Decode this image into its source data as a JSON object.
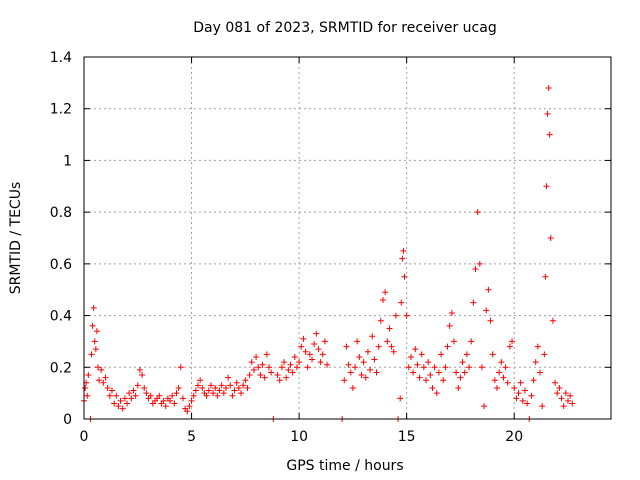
{
  "chart_data": {
    "type": "scatter",
    "title": "Day 081 of 2023, SRMTID for receiver ucag",
    "xlabel": "GPS time / hours",
    "ylabel": "SRMTID / TECUs",
    "xlim": [
      0,
      24.5
    ],
    "ylim": [
      0,
      1.4
    ],
    "grid": true,
    "marker": "+",
    "color": "#ff0000",
    "x_ticks": [
      0,
      5,
      10,
      15,
      20
    ],
    "x_tick_labels": [
      "0",
      "5",
      "10",
      "15",
      "20"
    ],
    "y_ticks": [
      0,
      0.2,
      0.4,
      0.6,
      0.8,
      1.0,
      1.2,
      1.4
    ],
    "y_tick_labels": [
      "0",
      "0.2",
      "0.4",
      "0.6",
      "0.8",
      "1",
      "1.2",
      "1.4"
    ],
    "series": [
      {
        "name": "SRMTID",
        "points": [
          [
            0.0,
            0.07
          ],
          [
            0.05,
            0.12
          ],
          [
            0.1,
            0.14
          ],
          [
            0.15,
            0.09
          ],
          [
            0.2,
            0.17
          ],
          [
            0.3,
            0.0
          ],
          [
            0.35,
            0.25
          ],
          [
            0.4,
            0.36
          ],
          [
            0.45,
            0.43
          ],
          [
            0.5,
            0.3
          ],
          [
            0.55,
            0.27
          ],
          [
            0.6,
            0.34
          ],
          [
            0.65,
            0.2
          ],
          [
            0.7,
            0.15
          ],
          [
            0.8,
            0.19
          ],
          [
            0.9,
            0.14
          ],
          [
            1.0,
            0.16
          ],
          [
            1.1,
            0.12
          ],
          [
            1.2,
            0.09
          ],
          [
            1.3,
            0.11
          ],
          [
            1.4,
            0.06
          ],
          [
            1.5,
            0.09
          ],
          [
            1.6,
            0.05
          ],
          [
            1.7,
            0.07
          ],
          [
            1.8,
            0.04
          ],
          [
            1.9,
            0.08
          ],
          [
            2.0,
            0.06
          ],
          [
            2.1,
            0.1
          ],
          [
            2.2,
            0.08
          ],
          [
            2.3,
            0.11
          ],
          [
            2.4,
            0.09
          ],
          [
            2.5,
            0.13
          ],
          [
            2.6,
            0.19
          ],
          [
            2.7,
            0.17
          ],
          [
            2.8,
            0.12
          ],
          [
            2.9,
            0.1
          ],
          [
            3.0,
            0.08
          ],
          [
            3.1,
            0.09
          ],
          [
            3.2,
            0.06
          ],
          [
            3.3,
            0.07
          ],
          [
            3.4,
            0.08
          ],
          [
            3.5,
            0.09
          ],
          [
            3.6,
            0.06
          ],
          [
            3.7,
            0.07
          ],
          [
            3.8,
            0.05
          ],
          [
            3.9,
            0.08
          ],
          [
            4.0,
            0.07
          ],
          [
            4.1,
            0.09
          ],
          [
            4.2,
            0.06
          ],
          [
            4.3,
            0.1
          ],
          [
            4.4,
            0.12
          ],
          [
            4.5,
            0.2
          ],
          [
            4.6,
            0.08
          ],
          [
            4.7,
            0.04
          ],
          [
            4.8,
            0.03
          ],
          [
            4.9,
            0.05
          ],
          [
            5.0,
            0.07
          ],
          [
            5.1,
            0.09
          ],
          [
            5.2,
            0.11
          ],
          [
            5.3,
            0.13
          ],
          [
            5.4,
            0.15
          ],
          [
            5.5,
            0.12
          ],
          [
            5.6,
            0.1
          ],
          [
            5.7,
            0.09
          ],
          [
            5.8,
            0.11
          ],
          [
            5.9,
            0.13
          ],
          [
            6.0,
            0.1
          ],
          [
            6.1,
            0.12
          ],
          [
            6.2,
            0.09
          ],
          [
            6.3,
            0.11
          ],
          [
            6.4,
            0.13
          ],
          [
            6.5,
            0.1
          ],
          [
            6.6,
            0.12
          ],
          [
            6.7,
            0.16
          ],
          [
            6.8,
            0.13
          ],
          [
            6.9,
            0.09
          ],
          [
            7.0,
            0.11
          ],
          [
            7.1,
            0.14
          ],
          [
            7.2,
            0.12
          ],
          [
            7.3,
            0.1
          ],
          [
            7.4,
            0.13
          ],
          [
            7.5,
            0.15
          ],
          [
            7.6,
            0.12
          ],
          [
            7.7,
            0.17
          ],
          [
            7.8,
            0.22
          ],
          [
            7.9,
            0.19
          ],
          [
            8.0,
            0.24
          ],
          [
            8.1,
            0.2
          ],
          [
            8.2,
            0.17
          ],
          [
            8.3,
            0.21
          ],
          [
            8.4,
            0.16
          ],
          [
            8.5,
            0.25
          ],
          [
            8.6,
            0.2
          ],
          [
            8.7,
            0.18
          ],
          [
            8.8,
            0.0
          ],
          [
            9.0,
            0.17
          ],
          [
            9.1,
            0.15
          ],
          [
            9.2,
            0.2
          ],
          [
            9.3,
            0.22
          ],
          [
            9.4,
            0.16
          ],
          [
            9.5,
            0.19
          ],
          [
            9.6,
            0.21
          ],
          [
            9.7,
            0.18
          ],
          [
            9.8,
            0.24
          ],
          [
            9.9,
            0.2
          ],
          [
            10.0,
            0.22
          ],
          [
            10.1,
            0.28
          ],
          [
            10.2,
            0.31
          ],
          [
            10.3,
            0.26
          ],
          [
            10.4,
            0.2
          ],
          [
            10.5,
            0.25
          ],
          [
            10.6,
            0.23
          ],
          [
            10.7,
            0.29
          ],
          [
            10.8,
            0.33
          ],
          [
            10.9,
            0.27
          ],
          [
            11.0,
            0.22
          ],
          [
            11.1,
            0.25
          ],
          [
            11.2,
            0.3
          ],
          [
            11.3,
            0.21
          ],
          [
            12.0,
            0.0
          ],
          [
            12.1,
            0.15
          ],
          [
            12.2,
            0.28
          ],
          [
            12.3,
            0.21
          ],
          [
            12.4,
            0.18
          ],
          [
            12.5,
            0.12
          ],
          [
            12.6,
            0.2
          ],
          [
            12.7,
            0.3
          ],
          [
            12.8,
            0.24
          ],
          [
            12.9,
            0.17
          ],
          [
            13.0,
            0.22
          ],
          [
            13.1,
            0.16
          ],
          [
            13.2,
            0.26
          ],
          [
            13.3,
            0.19
          ],
          [
            13.4,
            0.32
          ],
          [
            13.5,
            0.23
          ],
          [
            13.6,
            0.18
          ],
          [
            13.7,
            0.28
          ],
          [
            13.8,
            0.38
          ],
          [
            13.9,
            0.46
          ],
          [
            14.0,
            0.49
          ],
          [
            14.1,
            0.3
          ],
          [
            14.2,
            0.35
          ],
          [
            14.3,
            0.28
          ],
          [
            14.4,
            0.26
          ],
          [
            14.5,
            0.4
          ],
          [
            14.6,
            0.0
          ],
          [
            14.7,
            0.08
          ],
          [
            14.75,
            0.45
          ],
          [
            14.8,
            0.62
          ],
          [
            14.85,
            0.65
          ],
          [
            14.9,
            0.55
          ],
          [
            15.0,
            0.4
          ],
          [
            15.1,
            0.2
          ],
          [
            15.2,
            0.24
          ],
          [
            15.3,
            0.18
          ],
          [
            15.4,
            0.27
          ],
          [
            15.5,
            0.21
          ],
          [
            15.6,
            0.16
          ],
          [
            15.7,
            0.25
          ],
          [
            15.8,
            0.2
          ],
          [
            15.9,
            0.15
          ],
          [
            16.0,
            0.22
          ],
          [
            16.1,
            0.17
          ],
          [
            16.2,
            0.12
          ],
          [
            16.3,
            0.2
          ],
          [
            16.4,
            0.1
          ],
          [
            16.5,
            0.18
          ],
          [
            16.6,
            0.25
          ],
          [
            16.7,
            0.15
          ],
          [
            16.8,
            0.2
          ],
          [
            16.9,
            0.28
          ],
          [
            17.0,
            0.36
          ],
          [
            17.1,
            0.41
          ],
          [
            17.2,
            0.3
          ],
          [
            17.3,
            0.18
          ],
          [
            17.4,
            0.12
          ],
          [
            17.5,
            0.16
          ],
          [
            17.6,
            0.22
          ],
          [
            17.7,
            0.18
          ],
          [
            17.8,
            0.25
          ],
          [
            17.9,
            0.2
          ],
          [
            18.0,
            0.3
          ],
          [
            18.1,
            0.45
          ],
          [
            18.2,
            0.58
          ],
          [
            18.3,
            0.8
          ],
          [
            18.4,
            0.6
          ],
          [
            18.5,
            0.2
          ],
          [
            18.6,
            0.05
          ],
          [
            18.7,
            0.42
          ],
          [
            18.8,
            0.5
          ],
          [
            18.9,
            0.38
          ],
          [
            19.0,
            0.25
          ],
          [
            19.1,
            0.15
          ],
          [
            19.2,
            0.12
          ],
          [
            19.3,
            0.18
          ],
          [
            19.4,
            0.22
          ],
          [
            19.5,
            0.16
          ],
          [
            19.6,
            0.2
          ],
          [
            19.7,
            0.14
          ],
          [
            19.8,
            0.28
          ],
          [
            19.9,
            0.3
          ],
          [
            20.0,
            0.12
          ],
          [
            20.1,
            0.08
          ],
          [
            20.2,
            0.1
          ],
          [
            20.3,
            0.14
          ],
          [
            20.4,
            0.07
          ],
          [
            20.5,
            0.11
          ],
          [
            20.6,
            0.06
          ],
          [
            20.7,
            0.0
          ],
          [
            20.8,
            0.09
          ],
          [
            20.9,
            0.15
          ],
          [
            21.0,
            0.22
          ],
          [
            21.1,
            0.28
          ],
          [
            21.2,
            0.18
          ],
          [
            21.3,
            0.05
          ],
          [
            21.4,
            0.25
          ],
          [
            21.45,
            0.55
          ],
          [
            21.5,
            0.9
          ],
          [
            21.55,
            1.18
          ],
          [
            21.6,
            1.28
          ],
          [
            21.65,
            1.1
          ],
          [
            21.7,
            0.7
          ],
          [
            21.8,
            0.38
          ],
          [
            21.9,
            0.14
          ],
          [
            22.0,
            0.1
          ],
          [
            22.1,
            0.12
          ],
          [
            22.2,
            0.08
          ],
          [
            22.3,
            0.05
          ],
          [
            22.4,
            0.1
          ],
          [
            22.5,
            0.07
          ],
          [
            22.6,
            0.09
          ],
          [
            22.7,
            0.06
          ]
        ]
      }
    ]
  }
}
